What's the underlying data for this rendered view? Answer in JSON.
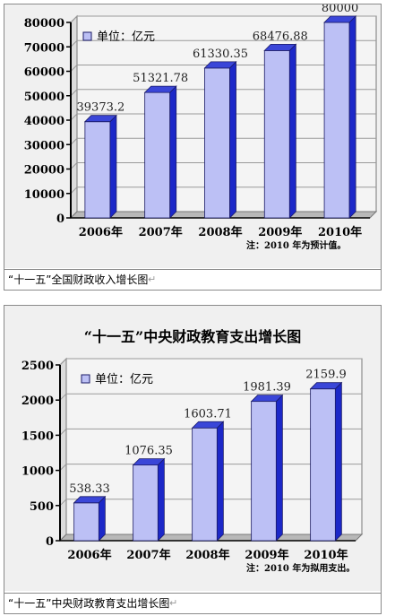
{
  "charts": [
    {
      "type": "bar",
      "title": "",
      "unit_label": "单位：亿元",
      "categories": [
        "2006年",
        "2007年",
        "2008年",
        "2009年",
        "2010年"
      ],
      "values": [
        39373.2,
        51321.78,
        61330.35,
        68476.88,
        80000
      ],
      "value_labels": [
        "39373.2",
        "51321.78",
        "61330.35",
        "68476.88",
        "80000"
      ],
      "ylim": [
        0,
        80000
      ],
      "yticks": [
        "0",
        "10000",
        "20000",
        "30000",
        "40000",
        "50000",
        "60000",
        "70000",
        "80000"
      ],
      "note": "注：2010 年为预计值。",
      "caption": "“十一五”全国财政收入增长图"
    },
    {
      "type": "bar",
      "title": "“十一五”中央财政教育支出增长图",
      "unit_label": "单位：亿元",
      "categories": [
        "2006年",
        "2007年",
        "2008年",
        "2009年",
        "2010年"
      ],
      "values": [
        538.33,
        1076.35,
        1603.71,
        1981.39,
        2159.9
      ],
      "value_labels": [
        "538.33",
        "1076.35",
        "1603.71",
        "1981.39",
        "2159.9"
      ],
      "ylim": [
        0,
        2500
      ],
      "yticks": [
        "0",
        "500",
        "1000",
        "1500",
        "2000",
        "2500"
      ],
      "note": "注：2010 年为拟用支出。",
      "caption": "“十一五”中央财政教育支出增长图"
    }
  ],
  "colors": {
    "bar_face": "#bcc0f5",
    "bar_side": "#1c28c8",
    "bar_top": "#3a46d8",
    "grid": "#9a9a9a",
    "wall": "#f4f4f4"
  }
}
